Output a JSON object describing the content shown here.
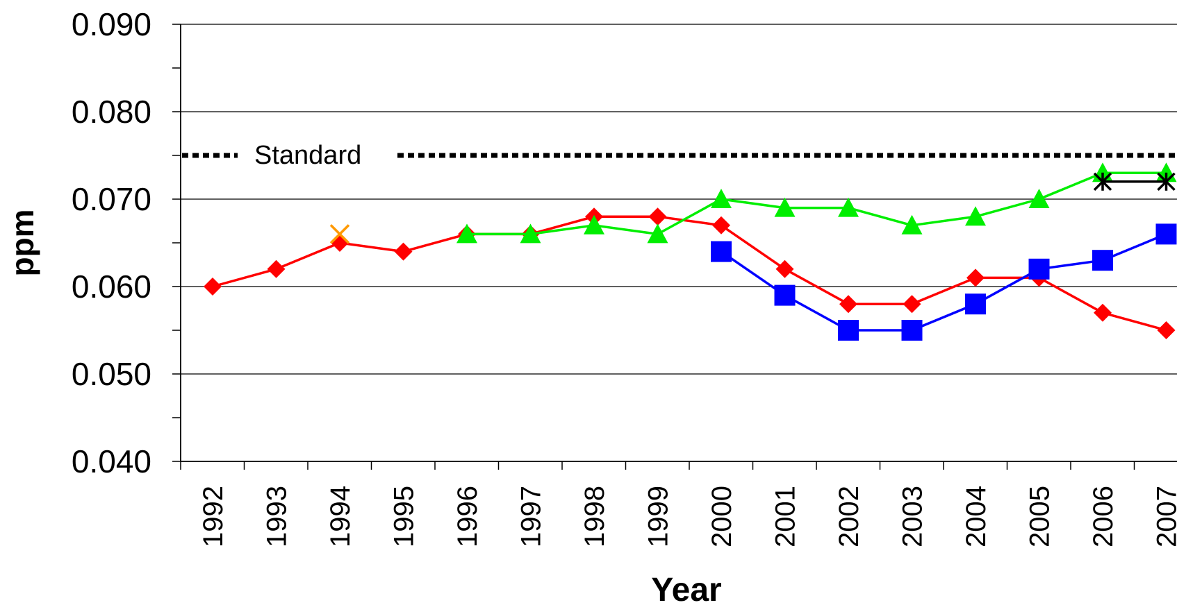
{
  "chart_data": {
    "type": "line",
    "title": "",
    "xlabel": "Year",
    "ylabel": "ppm",
    "categories": [
      "1992",
      "1993",
      "1994",
      "1995",
      "1996",
      "1997",
      "1998",
      "1999",
      "2000",
      "2001",
      "2002",
      "2003",
      "2004",
      "2005",
      "2006",
      "2007"
    ],
    "yticks": [
      "0.040",
      "0.050",
      "0.060",
      "0.070",
      "0.080",
      "0.090"
    ],
    "ylim": [
      0.04,
      0.09
    ],
    "grid": true,
    "legend": "none",
    "reference_line": {
      "label": "Standard",
      "value": 0.075,
      "style": "dotted",
      "color": "#000000"
    },
    "series": [
      {
        "color": "#ff0000",
        "marker": "diamond",
        "line": true,
        "values": [
          0.06,
          0.062,
          0.065,
          0.064,
          0.066,
          0.066,
          0.068,
          0.068,
          0.067,
          0.062,
          0.058,
          0.058,
          0.061,
          0.061,
          0.057,
          0.055
        ]
      },
      {
        "color": "#00ee00",
        "marker": "triangle",
        "line": true,
        "values": [
          null,
          null,
          null,
          null,
          0.066,
          0.066,
          0.067,
          0.066,
          0.07,
          0.069,
          0.069,
          0.067,
          0.068,
          0.07,
          0.073,
          0.073
        ]
      },
      {
        "color": "#0000ff",
        "marker": "square",
        "line": true,
        "values": [
          null,
          null,
          null,
          null,
          null,
          null,
          null,
          null,
          0.064,
          0.059,
          0.055,
          0.055,
          0.058,
          0.062,
          0.063,
          0.066
        ]
      },
      {
        "color": "#000000",
        "marker": "asterisk",
        "line": true,
        "values": [
          null,
          null,
          null,
          null,
          null,
          null,
          null,
          null,
          null,
          null,
          null,
          null,
          null,
          null,
          0.072,
          0.072
        ]
      },
      {
        "color": "#ff9900",
        "marker": "x",
        "line": false,
        "values": [
          null,
          null,
          0.066,
          null,
          null,
          null,
          null,
          null,
          null,
          null,
          null,
          null,
          null,
          null,
          null,
          null
        ]
      }
    ]
  }
}
